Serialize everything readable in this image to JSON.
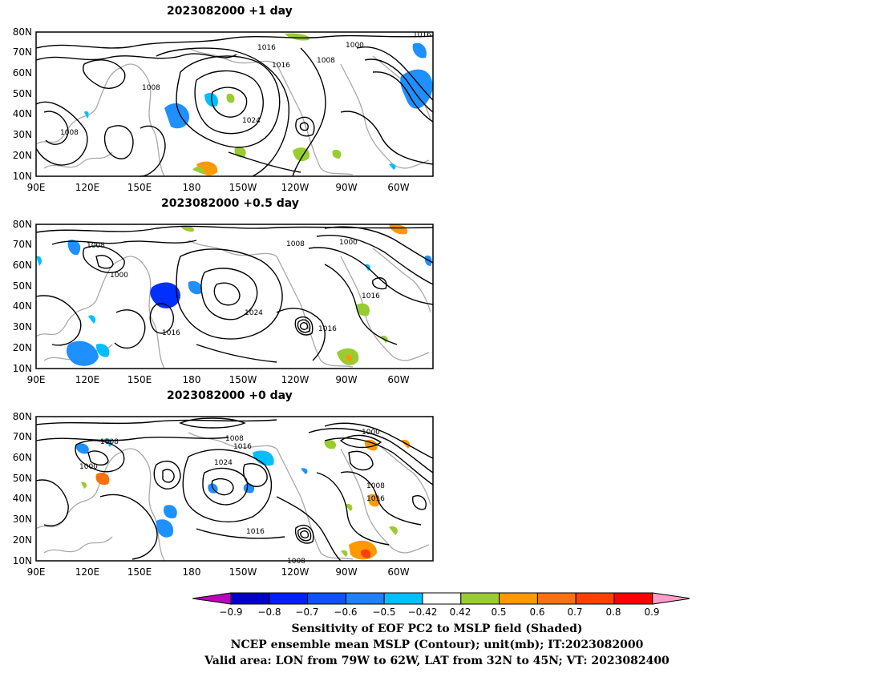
{
  "panels": [
    {
      "title": "2023082000  +1 day",
      "contour_labels": [
        "1016",
        "1000",
        "1016",
        "1008",
        "1016",
        "1008",
        "1024",
        "1008"
      ]
    },
    {
      "title": "2023082000  +0.5 day",
      "contour_labels": [
        "1008",
        "1008",
        "1000",
        "1000",
        "1016",
        "1024",
        "1016",
        "1016"
      ]
    },
    {
      "title": "2023082000  +0 day",
      "contour_labels": [
        "1008",
        "1008",
        "1016",
        "1000",
        "1000",
        "1024",
        "1008",
        "1016",
        "1016",
        "1008"
      ]
    }
  ],
  "axes": {
    "y_ticks": [
      "80N",
      "70N",
      "60N",
      "50N",
      "40N",
      "30N",
      "20N",
      "10N"
    ],
    "x_ticks": [
      "90E",
      "120E",
      "150E",
      "180",
      "150W",
      "120W",
      "90W",
      "60W"
    ]
  },
  "colorbar": {
    "labels": [
      "−0.9",
      "−0.8",
      "−0.7",
      "−0.6",
      "−0.5",
      "−0.42",
      "0.42",
      "0.5",
      "0.6",
      "0.7",
      "0.8",
      "0.9"
    ],
    "colors": [
      "#c000c0",
      "#0000c8",
      "#0020ff",
      "#1050ff",
      "#2080ff",
      "#00c0ff",
      "#ffffff",
      "#99cc33",
      "#ff9900",
      "#ff7010",
      "#ff4000",
      "#ff0000",
      "#ff9ec6"
    ]
  },
  "shading_colors": {
    "blue": "#1e90ff",
    "cyan": "#00bfff",
    "green": "#99cc33",
    "orange": "#ff9900",
    "red": "#ff5000",
    "coast": "#a8a8a8"
  },
  "captions": [
    "Sensitivity of EOF PC2 to MSLP field (Shaded)",
    "NCEP ensemble mean MSLP (Contour); unit(mb); IT:2023082000",
    "Valid area: LON from 79W to 62W, LAT from 32N to 45N; VT: 2023082400"
  ]
}
